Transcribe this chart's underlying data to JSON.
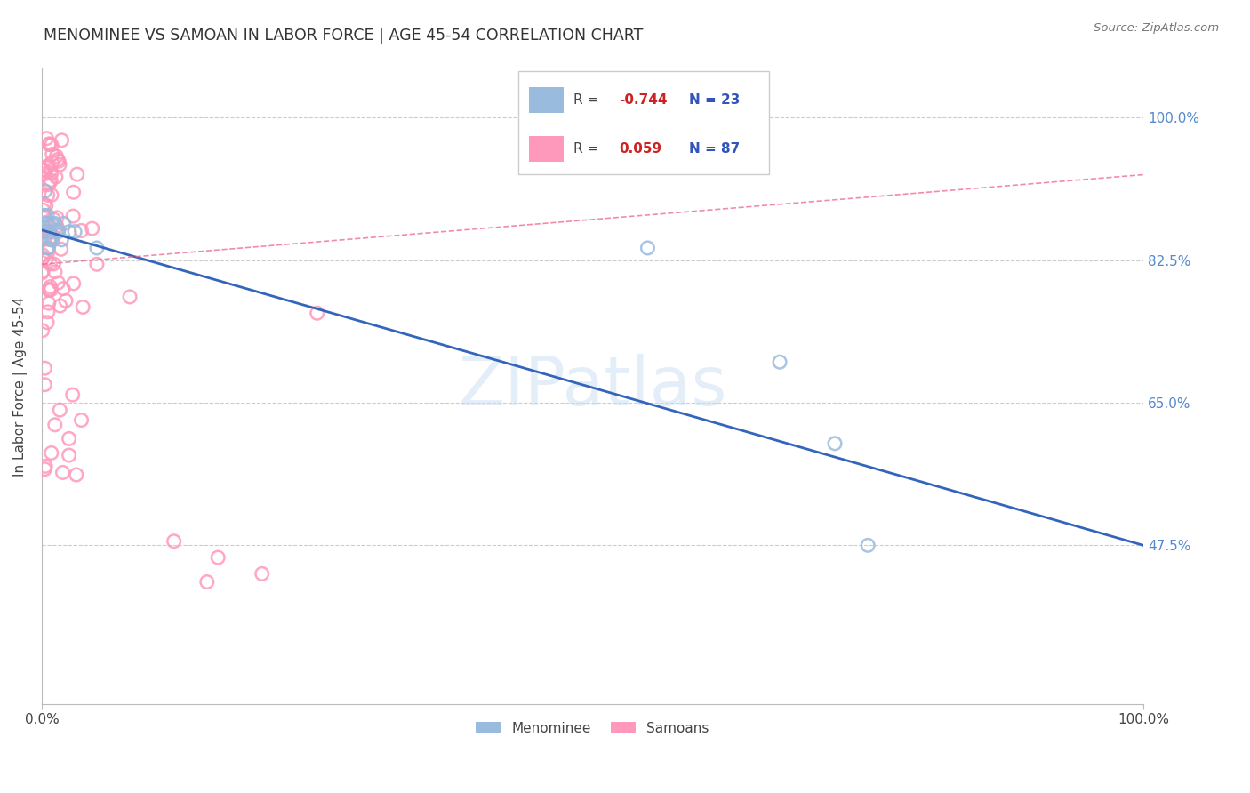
{
  "title": "MENOMINEE VS SAMOAN IN LABOR FORCE | AGE 45-54 CORRELATION CHART",
  "source": "Source: ZipAtlas.com",
  "ylabel": "In Labor Force | Age 45-54",
  "ytick_values": [
    1.0,
    0.825,
    0.65,
    0.475
  ],
  "ytick_labels": [
    "100.0%",
    "82.5%",
    "65.0%",
    "47.5%"
  ],
  "xlim": [
    0.0,
    1.0
  ],
  "ylim": [
    0.28,
    1.06
  ],
  "blue_color": "#99bbdd",
  "pink_color": "#ff99bb",
  "blue_line_color": "#3366bb",
  "pink_line_color": "#ee6688",
  "watermark": "ZIPatlas",
  "menominee_x": [
    0.002,
    0.003,
    0.003,
    0.004,
    0.004,
    0.005,
    0.005,
    0.006,
    0.006,
    0.007,
    0.007,
    0.008,
    0.009,
    0.01,
    0.011,
    0.012,
    0.015,
    0.018,
    0.02,
    0.025,
    0.55,
    0.67,
    0.75
  ],
  "menominee_y": [
    0.87,
    0.9,
    0.86,
    0.88,
    0.85,
    0.87,
    0.83,
    0.86,
    0.84,
    0.85,
    0.83,
    0.86,
    0.84,
    0.87,
    0.85,
    0.87,
    0.85,
    0.85,
    0.86,
    0.85,
    0.84,
    0.7,
    0.6
  ],
  "samoans_x": [
    0.0,
    0.0,
    0.0,
    0.001,
    0.001,
    0.002,
    0.002,
    0.003,
    0.003,
    0.003,
    0.004,
    0.004,
    0.005,
    0.005,
    0.005,
    0.006,
    0.006,
    0.007,
    0.007,
    0.008,
    0.008,
    0.009,
    0.01,
    0.01,
    0.011,
    0.012,
    0.012,
    0.013,
    0.014,
    0.015,
    0.015,
    0.016,
    0.017,
    0.018,
    0.019,
    0.02,
    0.021,
    0.022,
    0.025,
    0.025,
    0.028,
    0.03,
    0.03,
    0.032,
    0.035,
    0.038,
    0.04,
    0.042,
    0.045,
    0.05,
    0.055,
    0.06,
    0.065,
    0.07,
    0.075,
    0.08,
    0.09,
    0.1,
    0.12,
    0.14,
    0.16,
    0.18,
    0.2,
    0.22,
    0.25,
    0.0,
    0.001,
    0.002,
    0.003,
    0.004,
    0.005,
    0.006,
    0.007,
    0.008,
    0.009,
    0.01,
    0.012,
    0.015,
    0.018,
    0.02,
    0.025,
    0.03,
    0.035,
    0.04,
    0.05,
    0.08,
    0.15
  ],
  "samoans_y": [
    0.87,
    0.86,
    0.85,
    0.97,
    0.95,
    0.88,
    0.94,
    0.92,
    0.86,
    0.82,
    0.9,
    0.84,
    0.96,
    0.88,
    0.83,
    0.94,
    0.86,
    0.91,
    0.85,
    0.89,
    0.83,
    0.87,
    0.89,
    0.84,
    0.91,
    0.88,
    0.83,
    0.86,
    0.84,
    0.9,
    0.85,
    0.83,
    0.88,
    0.86,
    0.84,
    0.87,
    0.85,
    0.83,
    0.86,
    0.82,
    0.84,
    0.86,
    0.82,
    0.84,
    0.86,
    0.84,
    0.85,
    0.83,
    0.86,
    0.83,
    0.82,
    0.81,
    0.82,
    0.8,
    0.81,
    0.8,
    0.82,
    0.81,
    0.82,
    0.78,
    0.79,
    0.8,
    0.78,
    0.77,
    0.76,
    0.83,
    0.8,
    0.78,
    0.76,
    0.74,
    0.72,
    0.7,
    0.68,
    0.66,
    0.64,
    0.62,
    0.59,
    0.56,
    0.53,
    0.5,
    0.47,
    0.64,
    0.61,
    0.59,
    0.55,
    0.46,
    0.44
  ]
}
